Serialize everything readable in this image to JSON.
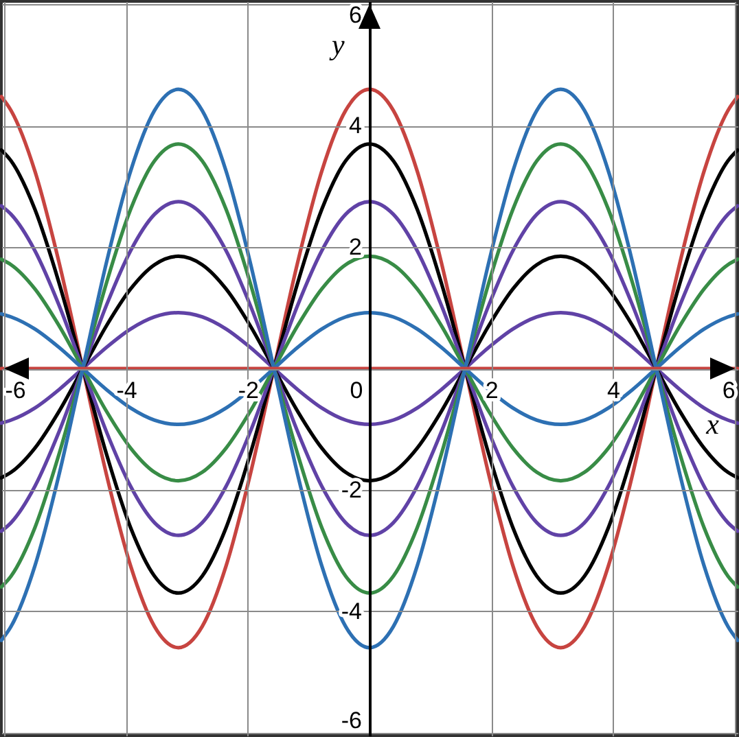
{
  "chart_data": {
    "type": "line",
    "xlabel": "x",
    "ylabel": "y",
    "xlim": [
      -6.05,
      6.05
    ],
    "ylim": [
      -6.05,
      6.05
    ],
    "xticks": [
      -6,
      -4,
      -2,
      0,
      2,
      4,
      6
    ],
    "yticks": [
      -6,
      -4,
      -2,
      {
        "value": 0,
        "label": null
      },
      2,
      4,
      6
    ],
    "grid": true,
    "x": [
      -6.05,
      -5.89,
      -5.498,
      -5.105,
      -4.712,
      -4.32,
      -3.927,
      -3.534,
      -3.142,
      -2.749,
      -2.356,
      -1.963,
      -1.571,
      -1.178,
      -0.785,
      -0.393,
      0,
      0.393,
      0.785,
      1.178,
      1.571,
      1.963,
      2.356,
      2.749,
      3.142,
      3.534,
      3.927,
      4.32,
      4.712,
      5.105,
      5.498,
      5.89,
      6.05
    ],
    "series": [
      {
        "color": "#c74440",
        "values": [
          4.48,
          4.25,
          3.25,
          1.76,
          0,
          -1.76,
          -3.25,
          -4.25,
          -4.6,
          -4.25,
          -3.25,
          -1.76,
          0,
          1.76,
          3.25,
          4.25,
          4.6,
          4.25,
          3.25,
          1.76,
          0,
          -1.76,
          -3.25,
          -4.25,
          -4.6,
          -4.25,
          -3.25,
          -1.76,
          0,
          1.76,
          3.25,
          4.25,
          4.48
        ]
      },
      {
        "color": "#000000",
        "values": [
          3.6,
          3.42,
          2.62,
          1.42,
          0,
          -1.42,
          -2.62,
          -3.42,
          -3.7,
          -3.42,
          -2.62,
          -1.42,
          0,
          1.42,
          2.62,
          3.42,
          3.7,
          3.42,
          2.62,
          1.42,
          0,
          -1.42,
          -2.62,
          -3.42,
          -3.7,
          -3.42,
          -2.62,
          -1.42,
          0,
          1.42,
          2.62,
          3.42,
          3.6
        ]
      },
      {
        "color": "#6042a6",
        "values": [
          2.68,
          2.54,
          1.94,
          1.05,
          0,
          -1.05,
          -1.94,
          -2.54,
          -2.75,
          -2.54,
          -1.94,
          -1.05,
          0,
          1.05,
          1.94,
          2.54,
          2.75,
          2.54,
          1.94,
          1.05,
          0,
          -1.05,
          -1.94,
          -2.54,
          -2.75,
          -2.54,
          -1.94,
          -1.05,
          0,
          1.05,
          1.94,
          2.54,
          2.68
        ]
      },
      {
        "color": "#388c46",
        "values": [
          1.8,
          1.71,
          1.31,
          0.71,
          0,
          -0.71,
          -1.31,
          -1.71,
          -1.85,
          -1.71,
          -1.31,
          -0.71,
          0,
          0.71,
          1.31,
          1.71,
          1.85,
          1.71,
          1.31,
          0.71,
          0,
          -0.71,
          -1.31,
          -1.71,
          -1.85,
          -1.71,
          -1.31,
          -0.71,
          0,
          0.71,
          1.31,
          1.71,
          1.8
        ]
      },
      {
        "color": "#2d70b3",
        "values": [
          0.9,
          0.85,
          0.65,
          0.35,
          0,
          -0.35,
          -0.65,
          -0.85,
          -0.92,
          -0.85,
          -0.65,
          -0.35,
          0,
          0.35,
          0.65,
          0.85,
          0.92,
          0.85,
          0.65,
          0.35,
          0,
          -0.35,
          -0.65,
          -0.85,
          -0.92,
          -0.85,
          -0.65,
          -0.35,
          0,
          0.35,
          0.65,
          0.85,
          0.9
        ]
      },
      {
        "color": "#6042a6",
        "values": [
          -0.9,
          -0.85,
          -0.65,
          -0.35,
          0,
          0.35,
          0.65,
          0.85,
          0.92,
          0.85,
          0.65,
          0.35,
          0,
          -0.35,
          -0.65,
          -0.85,
          -0.92,
          -0.85,
          -0.65,
          -0.35,
          0,
          0.35,
          0.65,
          0.85,
          0.92,
          0.85,
          0.65,
          0.35,
          0,
          -0.35,
          -0.65,
          -0.85,
          -0.9
        ]
      },
      {
        "color": "#000000",
        "values": [
          -1.8,
          -1.71,
          -1.31,
          -0.71,
          0,
          0.71,
          1.31,
          1.71,
          1.85,
          1.71,
          1.31,
          0.71,
          0,
          -0.71,
          -1.31,
          -1.71,
          -1.85,
          -1.71,
          -1.31,
          -0.71,
          0,
          0.71,
          1.31,
          1.71,
          1.85,
          1.71,
          1.31,
          0.71,
          0,
          -0.71,
          -1.31,
          -1.71,
          -1.8
        ]
      },
      {
        "color": "#6042a6",
        "values": [
          -2.68,
          -2.54,
          -1.94,
          -1.05,
          0,
          1.05,
          1.94,
          2.54,
          2.75,
          2.54,
          1.94,
          1.05,
          0,
          -1.05,
          -1.94,
          -2.54,
          -2.75,
          -2.54,
          -1.94,
          -1.05,
          0,
          1.05,
          1.94,
          2.54,
          2.75,
          2.54,
          1.94,
          1.05,
          0,
          -1.05,
          -1.94,
          -2.54,
          -2.68
        ]
      },
      {
        "color": "#388c46",
        "values": [
          -3.6,
          -3.42,
          -2.62,
          -1.42,
          0,
          1.42,
          2.62,
          3.42,
          3.7,
          3.42,
          2.62,
          1.42,
          0,
          -1.42,
          -2.62,
          -3.42,
          -3.7,
          -3.42,
          -2.62,
          -1.42,
          0,
          1.42,
          2.62,
          3.42,
          3.7,
          3.42,
          2.62,
          1.42,
          0,
          -1.42,
          -2.62,
          -3.42,
          -3.6
        ]
      },
      {
        "color": "#2d70b3",
        "values": [
          -4.48,
          -4.25,
          -3.25,
          -1.76,
          0,
          1.76,
          3.25,
          4.25,
          4.6,
          4.25,
          3.25,
          1.76,
          0,
          -1.76,
          -3.25,
          -4.25,
          -4.6,
          -4.25,
          -3.25,
          -1.76,
          0,
          1.76,
          3.25,
          4.25,
          4.6,
          4.25,
          3.25,
          1.76,
          0,
          -1.76,
          -3.25,
          -4.25,
          -4.48
        ]
      },
      {
        "color": "#c74440",
        "values": [
          0,
          0,
          0,
          0,
          0,
          0,
          0,
          0,
          0,
          0,
          0,
          0,
          0,
          0,
          0,
          0,
          0,
          0,
          0,
          0,
          0,
          0,
          0,
          0,
          0,
          0,
          0,
          0,
          0,
          0,
          0,
          0,
          0
        ]
      }
    ]
  }
}
